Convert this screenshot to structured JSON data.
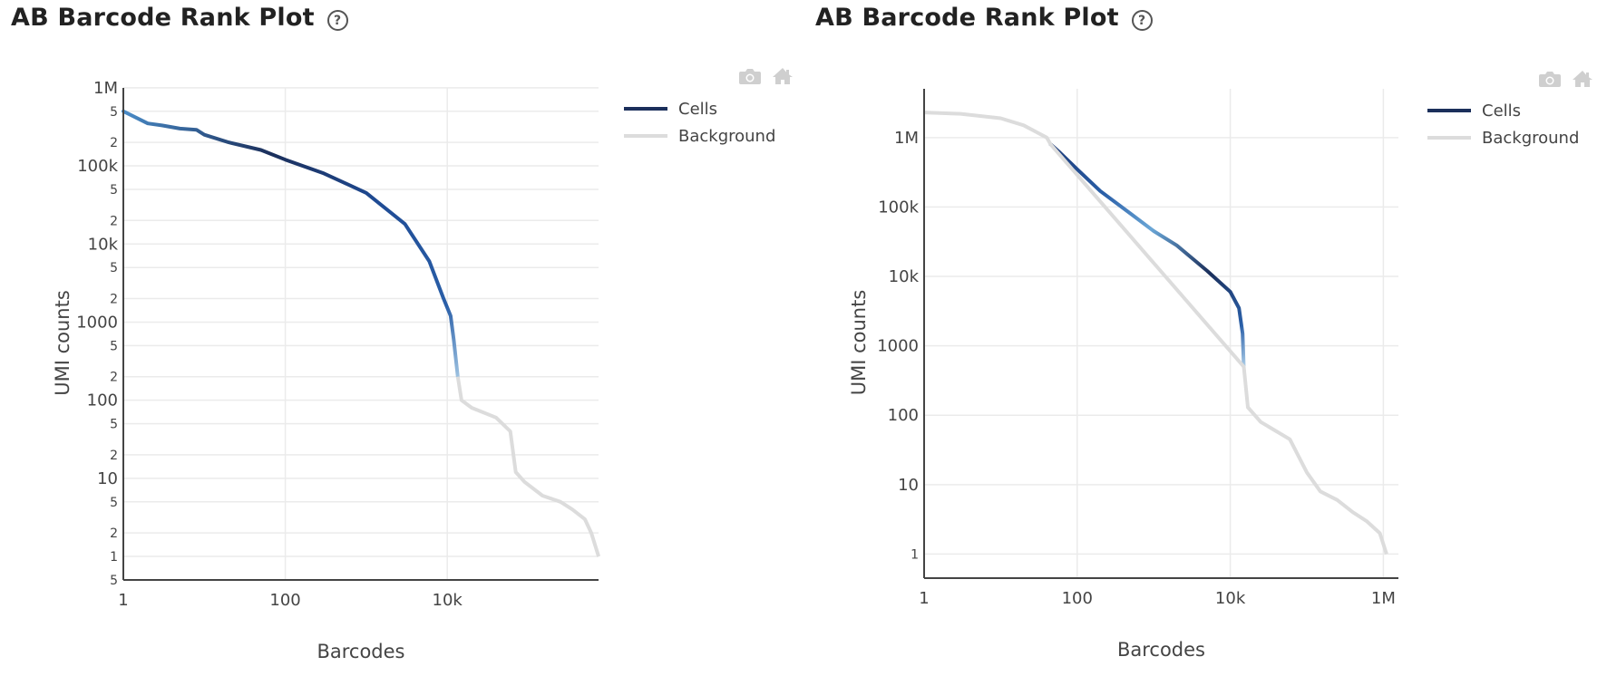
{
  "panels": [
    {
      "title": "AB Barcode Rank Plot",
      "help_icon": "?",
      "legend": [
        {
          "label": "Cells",
          "color": "#1b2f5b"
        },
        {
          "label": "Background",
          "color": "#dcdcdc"
        }
      ],
      "modebar": [
        "camera-icon",
        "home-icon"
      ],
      "xaxis": {
        "title": "Barcodes",
        "ticks": [
          "1",
          "100",
          "10k"
        ]
      },
      "yaxis": {
        "title": "UMI counts",
        "ticks": [
          "1M",
          "5",
          "2",
          "100k",
          "5",
          "2",
          "10k",
          "5",
          "2",
          "1000",
          "5",
          "2",
          "100",
          "5",
          "2",
          "10",
          "5",
          "2",
          "1",
          "5"
        ]
      }
    },
    {
      "title": "AB Barcode Rank Plot",
      "help_icon": "?",
      "legend": [
        {
          "label": "Cells",
          "color": "#1b2f5b"
        },
        {
          "label": "Background",
          "color": "#dcdcdc"
        }
      ],
      "modebar": [
        "camera-icon",
        "home-icon"
      ],
      "xaxis": {
        "title": "Barcodes",
        "ticks": [
          "1",
          "100",
          "10k",
          "1M"
        ]
      },
      "yaxis": {
        "title": "UMI counts",
        "ticks": [
          "1M",
          "100k",
          "10k",
          "1000",
          "100",
          "10",
          "1"
        ]
      }
    }
  ],
  "chart_data": [
    {
      "type": "line",
      "title": "AB Barcode Rank Plot",
      "xlabel": "Barcodes",
      "ylabel": "UMI counts",
      "xscale": "log",
      "yscale": "log",
      "xlim": [
        1,
        740000
      ],
      "ylim": [
        0.5,
        1000000
      ],
      "grid": true,
      "legend_position": "right",
      "legend": [
        "Cells",
        "Background"
      ],
      "series": [
        {
          "name": "Cells",
          "color_range": [
            "#4a8cc8",
            "#1b2f5b"
          ],
          "x": [
            1,
            2,
            3,
            5,
            8,
            10,
            20,
            50,
            100,
            300,
            1000,
            3000,
            6000,
            9000,
            11000,
            12000,
            13500
          ],
          "y": [
            500000,
            350000,
            330000,
            300000,
            290000,
            250000,
            200000,
            160000,
            120000,
            80000,
            45000,
            18000,
            6000,
            2000,
            1200,
            600,
            200
          ]
        },
        {
          "name": "Background",
          "color": "#dcdcdc",
          "x": [
            13500,
            15000,
            20000,
            40000,
            60000,
            70000,
            90000,
            150000,
            250000,
            350000,
            500000,
            600000,
            740000
          ],
          "y": [
            200,
            100,
            80,
            60,
            40,
            12,
            9,
            6,
            5,
            4,
            3,
            2,
            1
          ]
        }
      ]
    },
    {
      "type": "line",
      "title": "AB Barcode Rank Plot",
      "xlabel": "Barcodes",
      "ylabel": "UMI counts",
      "xscale": "log",
      "yscale": "log",
      "xlim": [
        1,
        1300000
      ],
      "ylim": [
        0.45,
        5000000
      ],
      "grid": true,
      "legend_position": "right",
      "legend": [
        "Cells",
        "Background"
      ],
      "series": [
        {
          "name": "Cells",
          "color_range": [
            "#5a9bd0",
            "#1b2f5b"
          ],
          "x": [
            45,
            60,
            100,
            200,
            500,
            1000,
            2000,
            5000,
            10000,
            13000,
            14500,
            15000
          ],
          "y": [
            800000,
            600000,
            350000,
            170000,
            80000,
            45000,
            28000,
            12000,
            6000,
            3500,
            1500,
            500
          ]
        },
        {
          "name": "Background",
          "color": "#dcdcdc",
          "x": [
            1,
            3,
            10,
            20,
            40,
            45,
            15000,
            17000,
            25000,
            60000,
            100000,
            150000,
            250000,
            400000,
            600000,
            900000,
            1100000
          ],
          "y": [
            2300000,
            2200000,
            1900000,
            1500000,
            1000000,
            800000,
            500,
            130,
            80,
            45,
            15,
            8,
            6,
            4,
            3,
            2,
            1
          ]
        }
      ]
    }
  ]
}
